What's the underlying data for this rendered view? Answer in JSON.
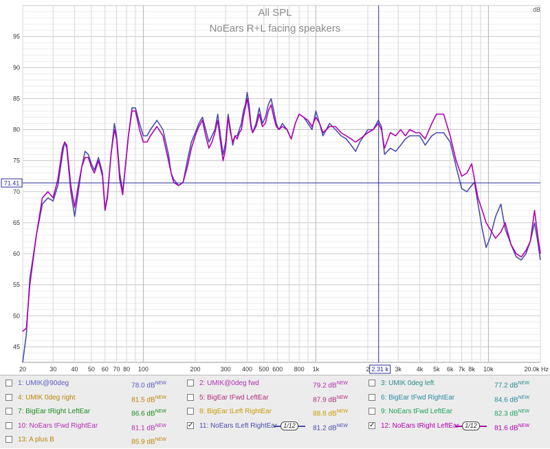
{
  "title": "All SPL",
  "subtitle": "NoEars R+L facing speakers",
  "chart_data": {
    "type": "line",
    "title": "All SPL",
    "subtitle": "NoEars R+L facing speakers",
    "x_scale": "log",
    "xlim": [
      20,
      20000
    ],
    "ylim": [
      42.5,
      100
    ],
    "y_unit": "dB",
    "x_unit": "Hz",
    "grid": true,
    "x_tick_labels": [
      {
        "v": 20,
        "t": "20"
      },
      {
        "v": 30,
        "t": "30"
      },
      {
        "v": 40,
        "t": "40"
      },
      {
        "v": 50,
        "t": "50"
      },
      {
        "v": 60,
        "t": "60"
      },
      {
        "v": 70,
        "t": "70"
      },
      {
        "v": 80,
        "t": "80"
      },
      {
        "v": 100,
        "t": "100"
      },
      {
        "v": 200,
        "t": "200"
      },
      {
        "v": 300,
        "t": "300"
      },
      {
        "v": 400,
        "t": "400"
      },
      {
        "v": 500,
        "t": "500"
      },
      {
        "v": 600,
        "t": "600"
      },
      {
        "v": 800,
        "t": "800"
      },
      {
        "v": 1000,
        "t": "1k"
      },
      {
        "v": 2000,
        "t": "2"
      },
      {
        "v": 3000,
        "t": "3k"
      },
      {
        "v": 4000,
        "t": "4k"
      },
      {
        "v": 5000,
        "t": "5k"
      },
      {
        "v": 6000,
        "t": "6k"
      },
      {
        "v": 7000,
        "t": "7k"
      },
      {
        "v": 8000,
        "t": "8k"
      },
      {
        "v": 10000,
        "t": "10k"
      },
      {
        "v": 20000,
        "t": "20.0k Hz"
      }
    ],
    "y_ticks": [
      45,
      50,
      55,
      60,
      65,
      70,
      75,
      80,
      85,
      90,
      95
    ],
    "y_unit_label": "dB",
    "cursor": {
      "x": 2310,
      "y": 71.41,
      "x_label": "2.31 k",
      "y_label": "71.41"
    },
    "series": [
      {
        "color": "#4a4ab0",
        "points": [
          [
            20,
            42.5
          ],
          [
            21,
            47
          ],
          [
            22,
            56
          ],
          [
            24,
            63
          ],
          [
            26,
            68
          ],
          [
            28,
            69
          ],
          [
            30,
            68.5
          ],
          [
            32,
            71
          ],
          [
            34,
            76
          ],
          [
            35,
            78
          ],
          [
            36,
            77
          ],
          [
            38,
            70
          ],
          [
            40,
            66
          ],
          [
            42,
            70
          ],
          [
            44,
            74
          ],
          [
            46,
            76.5
          ],
          [
            48,
            76
          ],
          [
            50,
            74.5
          ],
          [
            52,
            73.5
          ],
          [
            55,
            75.5
          ],
          [
            58,
            73
          ],
          [
            60,
            67
          ],
          [
            62,
            69
          ],
          [
            65,
            76
          ],
          [
            68,
            81
          ],
          [
            70,
            79
          ],
          [
            73,
            73
          ],
          [
            76,
            70
          ],
          [
            78,
            73
          ],
          [
            82,
            79
          ],
          [
            86,
            83.5
          ],
          [
            90,
            83.5
          ],
          [
            95,
            81
          ],
          [
            100,
            79
          ],
          [
            105,
            79
          ],
          [
            110,
            80
          ],
          [
            120,
            81.5
          ],
          [
            130,
            80
          ],
          [
            140,
            76
          ],
          [
            145,
            73
          ],
          [
            150,
            72
          ],
          [
            160,
            71
          ],
          [
            170,
            71.5
          ],
          [
            180,
            75
          ],
          [
            190,
            78
          ],
          [
            200,
            79.5
          ],
          [
            210,
            81
          ],
          [
            220,
            82
          ],
          [
            230,
            80
          ],
          [
            240,
            78
          ],
          [
            250,
            79
          ],
          [
            260,
            80
          ],
          [
            270,
            82.5
          ],
          [
            280,
            79
          ],
          [
            290,
            76
          ],
          [
            300,
            78
          ],
          [
            310,
            82.5
          ],
          [
            320,
            80
          ],
          [
            330,
            77.5
          ],
          [
            340,
            79
          ],
          [
            350,
            79
          ],
          [
            360,
            80
          ],
          [
            370,
            81
          ],
          [
            380,
            83
          ],
          [
            390,
            84
          ],
          [
            400,
            86
          ],
          [
            410,
            84
          ],
          [
            420,
            81
          ],
          [
            430,
            79.5
          ],
          [
            450,
            81
          ],
          [
            470,
            83.5
          ],
          [
            490,
            81
          ],
          [
            510,
            82
          ],
          [
            530,
            84
          ],
          [
            550,
            85
          ],
          [
            570,
            83
          ],
          [
            590,
            81
          ],
          [
            610,
            80
          ],
          [
            640,
            81
          ],
          [
            680,
            80
          ],
          [
            720,
            78.5
          ],
          [
            760,
            81
          ],
          [
            800,
            82.5
          ],
          [
            850,
            82
          ],
          [
            900,
            81
          ],
          [
            950,
            80
          ],
          [
            1000,
            83
          ],
          [
            1050,
            81
          ],
          [
            1100,
            79
          ],
          [
            1150,
            80
          ],
          [
            1200,
            81
          ],
          [
            1300,
            80
          ],
          [
            1400,
            79
          ],
          [
            1500,
            78.5
          ],
          [
            1600,
            77.5
          ],
          [
            1700,
            76.5
          ],
          [
            1800,
            78
          ],
          [
            1900,
            79
          ],
          [
            2000,
            80
          ],
          [
            2150,
            80
          ],
          [
            2300,
            81.5
          ],
          [
            2400,
            80.5
          ],
          [
            2500,
            76
          ],
          [
            2700,
            77
          ],
          [
            2900,
            76.5
          ],
          [
            3100,
            77.5
          ],
          [
            3300,
            78.5
          ],
          [
            3500,
            79
          ],
          [
            3800,
            79
          ],
          [
            4000,
            79
          ],
          [
            4300,
            77.5
          ],
          [
            4700,
            79
          ],
          [
            5000,
            79.5
          ],
          [
            5500,
            79.5
          ],
          [
            6000,
            78
          ],
          [
            6500,
            74
          ],
          [
            7000,
            70.5
          ],
          [
            7500,
            70
          ],
          [
            8000,
            71
          ],
          [
            8300,
            71.5
          ],
          [
            8700,
            68
          ],
          [
            9200,
            64
          ],
          [
            9700,
            61
          ],
          [
            10200,
            62.5
          ],
          [
            11000,
            66
          ],
          [
            11800,
            68
          ],
          [
            12500,
            64
          ],
          [
            13500,
            61.5
          ],
          [
            14500,
            59.5
          ],
          [
            15500,
            59
          ],
          [
            16500,
            60
          ],
          [
            17500,
            62
          ],
          [
            18500,
            65
          ],
          [
            19300,
            62
          ],
          [
            20000,
            59
          ]
        ]
      },
      {
        "color": "#b000b0",
        "points": [
          [
            20,
            47.5
          ],
          [
            21,
            48
          ],
          [
            22,
            55
          ],
          [
            24,
            63
          ],
          [
            26,
            69
          ],
          [
            28,
            70
          ],
          [
            30,
            69
          ],
          [
            32,
            72
          ],
          [
            34,
            77
          ],
          [
            35,
            78
          ],
          [
            36,
            77.5
          ],
          [
            38,
            71
          ],
          [
            40,
            67.5
          ],
          [
            42,
            71
          ],
          [
            44,
            74
          ],
          [
            46,
            75.5
          ],
          [
            48,
            75.5
          ],
          [
            50,
            74
          ],
          [
            52,
            73
          ],
          [
            55,
            75
          ],
          [
            58,
            72.5
          ],
          [
            60,
            67
          ],
          [
            62,
            69.5
          ],
          [
            65,
            76
          ],
          [
            68,
            80
          ],
          [
            70,
            78.5
          ],
          [
            73,
            72
          ],
          [
            76,
            69.5
          ],
          [
            78,
            73
          ],
          [
            82,
            79
          ],
          [
            86,
            83
          ],
          [
            90,
            83
          ],
          [
            95,
            80
          ],
          [
            100,
            78
          ],
          [
            105,
            78
          ],
          [
            110,
            79
          ],
          [
            120,
            80.5
          ],
          [
            130,
            79
          ],
          [
            140,
            75
          ],
          [
            145,
            73
          ],
          [
            150,
            71.5
          ],
          [
            160,
            71
          ],
          [
            170,
            71.5
          ],
          [
            180,
            74
          ],
          [
            190,
            77
          ],
          [
            200,
            79
          ],
          [
            210,
            80.5
          ],
          [
            220,
            81.5
          ],
          [
            230,
            79
          ],
          [
            240,
            77
          ],
          [
            250,
            78
          ],
          [
            260,
            79.5
          ],
          [
            270,
            81.5
          ],
          [
            280,
            78
          ],
          [
            290,
            75
          ],
          [
            300,
            77
          ],
          [
            310,
            82
          ],
          [
            320,
            79.5
          ],
          [
            330,
            78
          ],
          [
            340,
            79
          ],
          [
            350,
            78.5
          ],
          [
            360,
            79.5
          ],
          [
            370,
            80
          ],
          [
            380,
            82
          ],
          [
            390,
            83.5
          ],
          [
            400,
            85
          ],
          [
            410,
            83
          ],
          [
            420,
            80.5
          ],
          [
            430,
            79.5
          ],
          [
            450,
            80.5
          ],
          [
            470,
            82.5
          ],
          [
            490,
            80.5
          ],
          [
            510,
            81
          ],
          [
            530,
            83
          ],
          [
            550,
            84
          ],
          [
            570,
            82
          ],
          [
            590,
            80.5
          ],
          [
            610,
            80
          ],
          [
            640,
            80.5
          ],
          [
            680,
            80
          ],
          [
            720,
            78.5
          ],
          [
            760,
            81
          ],
          [
            800,
            82.5
          ],
          [
            850,
            82
          ],
          [
            900,
            81.5
          ],
          [
            950,
            80.5
          ],
          [
            1000,
            82
          ],
          [
            1050,
            81
          ],
          [
            1100,
            79.5
          ],
          [
            1150,
            80
          ],
          [
            1200,
            80.5
          ],
          [
            1300,
            80.5
          ],
          [
            1400,
            79.5
          ],
          [
            1500,
            79
          ],
          [
            1600,
            78.5
          ],
          [
            1700,
            78
          ],
          [
            1800,
            78.5
          ],
          [
            1900,
            79
          ],
          [
            2000,
            79.5
          ],
          [
            2150,
            80
          ],
          [
            2300,
            81
          ],
          [
            2400,
            80
          ],
          [
            2500,
            77
          ],
          [
            2700,
            79.5
          ],
          [
            2900,
            79
          ],
          [
            3100,
            80
          ],
          [
            3300,
            79
          ],
          [
            3500,
            80
          ],
          [
            3800,
            79.5
          ],
          [
            4000,
            79.5
          ],
          [
            4300,
            78.5
          ],
          [
            4700,
            81
          ],
          [
            5000,
            82.5
          ],
          [
            5500,
            82.5
          ],
          [
            6000,
            79
          ],
          [
            6500,
            75
          ],
          [
            7000,
            72.5
          ],
          [
            7500,
            73
          ],
          [
            8000,
            74.5
          ],
          [
            8300,
            72
          ],
          [
            8700,
            69
          ],
          [
            9200,
            67
          ],
          [
            9700,
            65
          ],
          [
            10200,
            64
          ],
          [
            11000,
            62.5
          ],
          [
            11800,
            63.5
          ],
          [
            12500,
            65
          ],
          [
            13500,
            61.5
          ],
          [
            14500,
            60
          ],
          [
            15500,
            59.5
          ],
          [
            16500,
            60.5
          ],
          [
            17500,
            62
          ],
          [
            18500,
            67
          ],
          [
            19300,
            63
          ],
          [
            20000,
            60
          ]
        ]
      }
    ]
  },
  "legend": [
    {
      "num": "1",
      "label": "1: UMIK@90deg",
      "value": "78.0 dB",
      "sup": "NEW",
      "color": "#5b5bc2",
      "checked": false
    },
    {
      "num": "2",
      "label": "2: UMIK@0deg fwd",
      "value": "79.2 dB",
      "sup": "NEW",
      "color": "#b02eb0",
      "checked": false
    },
    {
      "num": "3",
      "label": "3: UMIK 0deg left",
      "value": "77.2 dB",
      "sup": "NEW",
      "color": "#2a8a8a",
      "checked": false
    },
    {
      "num": "4",
      "label": "4: UMIK 0deg right",
      "value": "81.5 dB",
      "sup": "NEW",
      "color": "#b8860b",
      "checked": false
    },
    {
      "num": "5",
      "label": "5: BigEar tFwd LeftEar",
      "value": "87.9 dB",
      "sup": "NEW",
      "color": "#b02e7a",
      "checked": false
    },
    {
      "num": "6",
      "label": "6: BigEar tFwd RightEar",
      "value": "84.6 dB",
      "sup": "NEW",
      "color": "#2a8aa0",
      "checked": false
    },
    {
      "num": "7",
      "label": "7: BigEar tRight LeftEar",
      "value": "86.6 dB",
      "sup": "NEW",
      "color": "#1e8a1e",
      "checked": false
    },
    {
      "num": "8",
      "label": "8: BigEar tLeft RightEar",
      "value": "88.8 dB",
      "sup": "NEW",
      "color": "#c89b00",
      "checked": false
    },
    {
      "num": "9",
      "label": "9: NoEars tFwd LeftEar",
      "value": "82.3 dB",
      "sup": "NEW",
      "color": "#20a060",
      "checked": false
    },
    {
      "num": "10",
      "label": "10: NoEars tFwd RightEar",
      "value": "81.1 dB",
      "sup": "NEW",
      "color": "#b02eb0",
      "checked": false
    },
    {
      "num": "11",
      "label": "11: NoEars tLeft RightEar",
      "value": "81.2 dB",
      "sup": "NEW",
      "color": "#4a4ab0",
      "checked": true,
      "smoothing": "1/12"
    },
    {
      "num": "12",
      "label": "12: NoEars tRight LeftEar",
      "value": "81.6 dB",
      "sup": "NEW",
      "color": "#b000b0",
      "checked": true,
      "smoothing": "1/12"
    },
    {
      "num": "13",
      "label": "13: A plus B",
      "value": "85.9 dB",
      "sup": "NEW",
      "color": "#b8860b",
      "checked": false
    }
  ]
}
